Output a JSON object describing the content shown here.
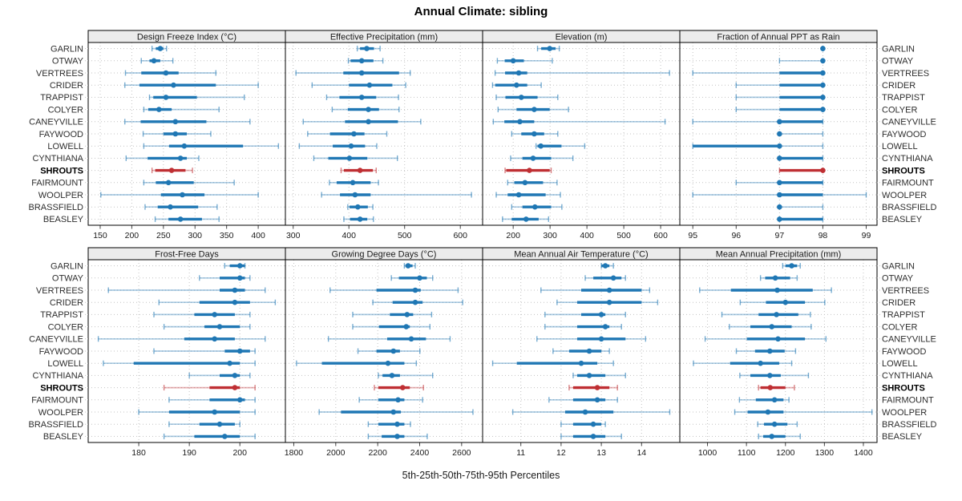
{
  "title": "Annual Climate: sibling",
  "colors": {
    "series": "#1f77b4",
    "highlight": "#bf2f33",
    "grid": "#c3c3c3",
    "strip_bg": "#ececec",
    "border": "#000000",
    "text": "#1a1a1a",
    "label_text": "#2e2e2e",
    "tick_mark": "#444444"
  },
  "chart_data": {
    "type": "scatter",
    "subtype": "trellis-percentile-interval-dotplot",
    "title": "Annual Climate: sibling",
    "xlabel": "5th-25th-50th-75th-95th Percentiles",
    "percentiles": [
      5,
      25,
      50,
      75,
      95
    ],
    "legend_position": "none",
    "grid": "dotted",
    "row_labels": "both-sides",
    "highlight_station": "SHROUTS",
    "stations": [
      "GARLIN",
      "OTWAY",
      "VERTREES",
      "CRIDER",
      "TRAPPIST",
      "COLYER",
      "CANEYVILLE",
      "FAYWOOD",
      "LOWELL",
      "CYNTHIANA",
      "SHROUTS",
      "FAIRMOUNT",
      "WOOLPER",
      "BRASSFIELD",
      "BEASLEY"
    ],
    "panels": [
      {
        "title": "Design Freeze Index (°C)",
        "xlim": [
          131,
          443
        ],
        "ticks": [
          150,
          200,
          250,
          300,
          350,
          400
        ],
        "values": [
          [
            232,
            238,
            245,
            250,
            255
          ],
          [
            215,
            228,
            235,
            245,
            265
          ],
          [
            190,
            215,
            254,
            274,
            333
          ],
          [
            189,
            212,
            266,
            333,
            400
          ],
          [
            228,
            234,
            254,
            303,
            378
          ],
          [
            219,
            226,
            243,
            263,
            338
          ],
          [
            189,
            214,
            269,
            318,
            387
          ],
          [
            218,
            250,
            269,
            287,
            325
          ],
          [
            219,
            259,
            283,
            376,
            432
          ],
          [
            191,
            225,
            277,
            287,
            306
          ],
          [
            232,
            237,
            263,
            285,
            296
          ],
          [
            219,
            238,
            258,
            298,
            362
          ],
          [
            151,
            246,
            280,
            315,
            400
          ],
          [
            221,
            241,
            261,
            305,
            335
          ],
          [
            237,
            258,
            277,
            311,
            338
          ]
        ]
      },
      {
        "title": "Effective Precipitation (mm)",
        "xlim": [
          286,
          640
        ],
        "ticks": [
          300,
          400,
          500,
          600
        ],
        "values": [
          [
            415,
            420,
            432,
            445,
            456
          ],
          [
            399,
            403,
            423,
            444,
            461
          ],
          [
            305,
            390,
            423,
            490,
            510
          ],
          [
            334,
            400,
            437,
            478,
            502
          ],
          [
            360,
            383,
            423,
            449,
            489
          ],
          [
            370,
            398,
            435,
            454,
            490
          ],
          [
            318,
            393,
            435,
            488,
            529
          ],
          [
            326,
            366,
            409,
            428,
            468
          ],
          [
            311,
            371,
            404,
            429,
            450
          ],
          [
            337,
            363,
            401,
            433,
            487
          ],
          [
            386,
            391,
            420,
            443,
            449
          ],
          [
            365,
            378,
            407,
            439,
            453
          ],
          [
            351,
            384,
            411,
            439,
            620
          ],
          [
            398,
            401,
            416,
            434,
            443
          ],
          [
            391,
            402,
            420,
            433,
            444
          ]
        ]
      },
      {
        "title": "Elevation (m)",
        "xlim": [
          117,
          652
        ],
        "ticks": [
          200,
          300,
          400,
          500,
          600
        ],
        "values": [
          [
            266,
            276,
            299,
            315,
            325
          ],
          [
            157,
            177,
            200,
            229,
            306
          ],
          [
            151,
            178,
            215,
            238,
            624
          ],
          [
            144,
            151,
            209,
            238,
            276
          ],
          [
            154,
            179,
            222,
            266,
            321
          ],
          [
            159,
            209,
            257,
            299,
            350
          ],
          [
            146,
            176,
            218,
            257,
            612
          ],
          [
            196,
            222,
            257,
            284,
            321
          ],
          [
            262,
            266,
            275,
            331,
            394
          ],
          [
            193,
            225,
            254,
            303,
            362
          ],
          [
            178,
            181,
            244,
            299,
            303
          ],
          [
            185,
            203,
            232,
            281,
            319
          ],
          [
            154,
            185,
            215,
            288,
            328
          ],
          [
            196,
            225,
            259,
            303,
            332
          ],
          [
            171,
            196,
            235,
            269,
            296
          ]
        ]
      },
      {
        "title": "Fraction of Annual PPT as Rain",
        "xlim": [
          94.7,
          99.25
        ],
        "ticks": [
          95,
          96,
          97,
          98,
          99
        ],
        "values": [
          [
            98,
            98,
            98,
            98,
            98
          ],
          [
            97,
            98,
            98,
            98,
            98
          ],
          [
            95,
            97,
            98,
            98,
            98
          ],
          [
            96,
            97,
            98,
            98,
            98
          ],
          [
            96,
            97,
            98,
            98,
            98
          ],
          [
            96,
            97,
            98,
            98,
            98
          ],
          [
            95,
            97,
            97,
            98,
            98
          ],
          [
            97,
            97,
            97,
            97,
            98
          ],
          [
            95,
            95,
            97,
            97,
            98
          ],
          [
            97,
            97,
            97,
            98,
            98
          ],
          [
            97,
            97,
            98,
            98,
            98
          ],
          [
            96,
            97,
            97,
            98,
            98
          ],
          [
            95,
            97,
            97,
            98,
            99
          ],
          [
            97,
            97,
            97,
            97,
            98
          ],
          [
            97,
            97,
            97,
            98,
            98
          ]
        ]
      },
      {
        "title": "Frost-Free Days",
        "xlim": [
          170,
          209
        ],
        "ticks": [
          180,
          190,
          200
        ],
        "values": [
          [
            197,
            198,
            200,
            201,
            201
          ],
          [
            192,
            196,
            200,
            201,
            202
          ],
          [
            174,
            196,
            199,
            201,
            205
          ],
          [
            184,
            192,
            199,
            202,
            207
          ],
          [
            183,
            191,
            195,
            199,
            202
          ],
          [
            185,
            193,
            196,
            200,
            202
          ],
          [
            172,
            189,
            195,
            199,
            205
          ],
          [
            183,
            197,
            200,
            202,
            203
          ],
          [
            173,
            179,
            198,
            200,
            203
          ],
          [
            190,
            196,
            199,
            200,
            202
          ],
          [
            185,
            194,
            199,
            200,
            203
          ],
          [
            186,
            194,
            200,
            201,
            203
          ],
          [
            180,
            186,
            195,
            200,
            203
          ],
          [
            186,
            192,
            196,
            199,
            200
          ],
          [
            185,
            191,
            197,
            200,
            203
          ]
        ]
      },
      {
        "title": "Growing Degree Days (°C)",
        "xlim": [
          1760,
          2700
        ],
        "ticks": [
          1800,
          2000,
          2200,
          2400,
          2600
        ],
        "values": [
          [
            2327,
            2332,
            2345,
            2366,
            2379
          ],
          [
            2265,
            2301,
            2400,
            2434,
            2462
          ],
          [
            1973,
            2194,
            2379,
            2405,
            2583
          ],
          [
            2177,
            2271,
            2379,
            2414,
            2605
          ],
          [
            2081,
            2258,
            2340,
            2369,
            2457
          ],
          [
            2081,
            2206,
            2336,
            2353,
            2449
          ],
          [
            1965,
            2245,
            2360,
            2430,
            2545
          ],
          [
            2106,
            2194,
            2275,
            2306,
            2401
          ],
          [
            1813,
            1934,
            2249,
            2327,
            2384
          ],
          [
            2203,
            2223,
            2268,
            2306,
            2462
          ],
          [
            2184,
            2203,
            2319,
            2353,
            2418
          ],
          [
            2112,
            2203,
            2297,
            2327,
            2414
          ],
          [
            1921,
            2025,
            2275,
            2310,
            2654
          ],
          [
            2155,
            2203,
            2293,
            2327,
            2356
          ],
          [
            2155,
            2219,
            2293,
            2327,
            2436
          ]
        ]
      },
      {
        "title": "Mean Annual Air Temperature (°C)",
        "xlim": [
          10.05,
          14.95
        ],
        "ticks": [
          11,
          12,
          13,
          14
        ],
        "values": [
          [
            13.0,
            13.0,
            13.1,
            13.2,
            13.3
          ],
          [
            12.6,
            12.8,
            13.3,
            13.5,
            13.6
          ],
          [
            11.5,
            12.5,
            13.2,
            14.0,
            14.2
          ],
          [
            11.9,
            12.4,
            13.2,
            14.0,
            14.4
          ],
          [
            11.6,
            12.5,
            13.0,
            13.1,
            13.6
          ],
          [
            11.6,
            12.4,
            13.1,
            13.2,
            13.5
          ],
          [
            11.4,
            12.4,
            13.0,
            13.6,
            14.1
          ],
          [
            11.8,
            12.2,
            12.7,
            13.0,
            13.2
          ],
          [
            10.3,
            10.9,
            12.5,
            12.9,
            13.3
          ],
          [
            12.3,
            12.4,
            12.7,
            13.1,
            13.6
          ],
          [
            12.2,
            12.3,
            12.9,
            13.2,
            13.4
          ],
          [
            11.7,
            12.3,
            12.9,
            13.1,
            13.4
          ],
          [
            10.8,
            12.1,
            12.6,
            13.3,
            14.7
          ],
          [
            12.0,
            12.3,
            12.8,
            13.0,
            13.1
          ],
          [
            12.0,
            12.3,
            12.8,
            13.1,
            13.5
          ]
        ]
      },
      {
        "title": "Mean Annual Precipitation (mm)",
        "xlim": [
          929,
          1435
        ],
        "ticks": [
          1000,
          1100,
          1200,
          1300,
          1400
        ],
        "values": [
          [
            1193,
            1200,
            1216,
            1230,
            1238
          ],
          [
            1136,
            1148,
            1174,
            1212,
            1230
          ],
          [
            980,
            1060,
            1179,
            1270,
            1318
          ],
          [
            1084,
            1150,
            1200,
            1250,
            1301
          ],
          [
            1037,
            1131,
            1177,
            1233,
            1264
          ],
          [
            1056,
            1110,
            1165,
            1216,
            1266
          ],
          [
            994,
            1101,
            1181,
            1250,
            1304
          ],
          [
            1074,
            1122,
            1160,
            1198,
            1226
          ],
          [
            964,
            1058,
            1136,
            1184,
            1216
          ],
          [
            1083,
            1110,
            1160,
            1188,
            1259
          ],
          [
            1131,
            1136,
            1161,
            1200,
            1223
          ],
          [
            1082,
            1124,
            1172,
            1195,
            1209
          ],
          [
            1070,
            1103,
            1155,
            1195,
            1422
          ],
          [
            1129,
            1145,
            1172,
            1205,
            1230
          ],
          [
            1131,
            1143,
            1165,
            1200,
            1238
          ]
        ]
      }
    ]
  }
}
